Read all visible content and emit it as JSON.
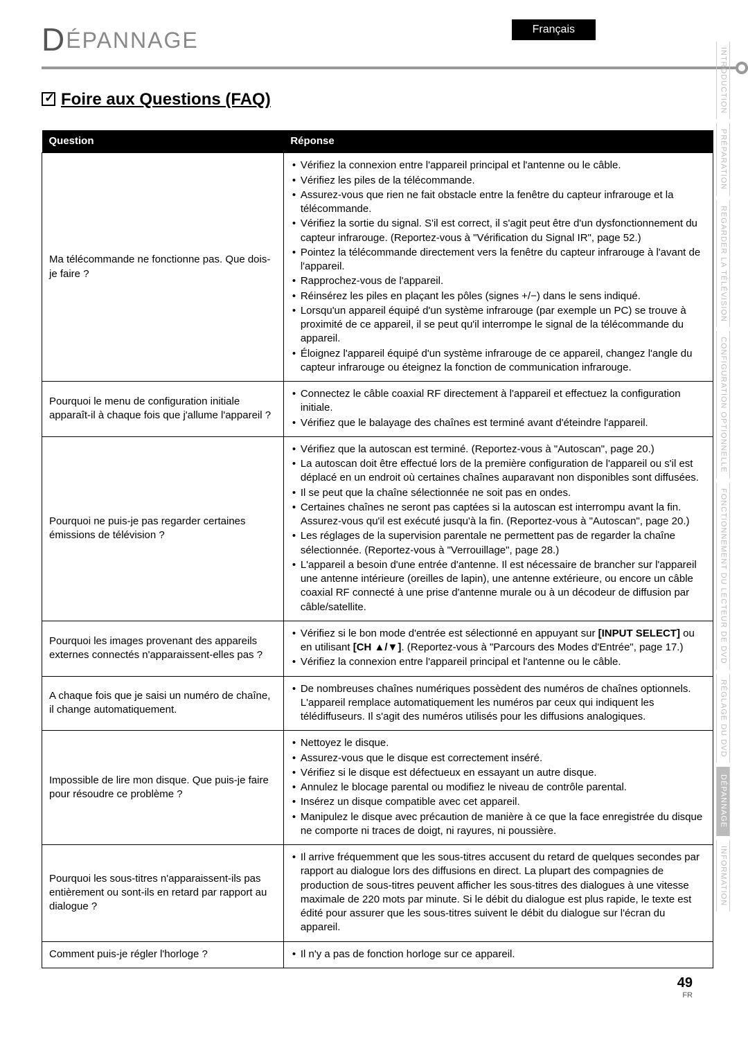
{
  "language_tab": "Français",
  "section_letter": "D",
  "section_title": "ÉPANNAGE",
  "faq_heading": "Foire aux Questions (FAQ)",
  "table": {
    "head_q": "Question",
    "head_a": "Réponse",
    "rows": [
      {
        "q": "Ma télécommande ne fonctionne pas. Que dois-je faire ?",
        "a": [
          "Vérifiez la connexion entre l'appareil principal et l'antenne ou le câble.",
          "Vérifiez les piles de la télécommande.",
          "Assurez-vous que rien ne fait obstacle entre la fenêtre du capteur infrarouge et la télécommande.",
          "Vérifiez la sortie du signal. S'il est correct, il s'agit peut être d'un dysfonctionnement du capteur infrarouge. (Reportez-vous à \"Vérification du Signal IR\", page 52.)",
          "Pointez la télécommande directement vers la fenêtre du capteur infrarouge à l'avant de l'appareil.",
          "Rapprochez-vous de l'appareil.",
          "Réinsérez les piles en plaçant les pôles (signes +/−) dans le sens indiqué.",
          "Lorsqu'un appareil équipé d'un système infrarouge (par exemple un PC) se trouve à proximité de ce appareil, il se peut qu'il interrompe le signal de la télécommande du appareil.",
          "Éloignez l'appareil équipé d'un système infrarouge de ce appareil, changez l'angle du capteur infrarouge ou éteignez la fonction de communication infrarouge."
        ]
      },
      {
        "q": "Pourquoi le menu de configuration initiale apparaît-il à chaque fois que j'allume l'appareil ?",
        "a": [
          "Connectez le câble coaxial RF directement à l'appareil et effectuez la configuration initiale.",
          "Vérifiez que le balayage des chaînes est terminé avant d'éteindre l'appareil."
        ]
      },
      {
        "q": "Pourquoi ne puis-je pas regarder certaines émissions de télévision ?",
        "a": [
          "Vérifiez que la autoscan est terminé. (Reportez-vous à \"Autoscan\", page 20.)",
          "La autoscan doit être effectué lors de la première configuration de l'appareil ou s'il est déplacé en un endroit où certaines chaînes auparavant non disponibles sont diffusées.",
          "Il se peut que la chaîne sélectionnée ne soit pas en ondes.",
          "Certaines chaînes ne seront pas captées si la autoscan est interrompu avant la fin. Assurez-vous qu'il est exécuté jusqu'à la fin. (Reportez-vous à \"Autoscan\", page 20.)",
          "Les réglages de la supervision parentale ne permettent pas de regarder la chaîne sélectionnée. (Reportez-vous à \"Verrouillage\", page 28.)",
          "L'appareil a besoin d'une entrée d'antenne. Il est nécessaire de brancher sur l'appareil une antenne intérieure (oreilles de lapin), une antenne extérieure, ou encore un câble coaxial RF connecté à une prise d'antenne murale ou à un décodeur de diffusion par câble/satellite."
        ]
      },
      {
        "q": "Pourquoi les images provenant des appareils externes connectés n'apparaissent-elles pas ?",
        "a_html": [
          "Vérifiez si le bon mode d'entrée est sélectionné en appuyant sur <span class=\"bold\">[INPUT SELECT]</span> ou en utilisant <span class=\"bold\">[CH ▲/▼]</span>. (Reportez-vous à \"Parcours des Modes d'Entrée\", page 17.)",
          "Vérifiez la connexion entre l'appareil principal et l'antenne ou le câble."
        ]
      },
      {
        "q": "A chaque fois que je saisi un numéro de chaîne, il change automatiquement.",
        "a": [
          "De nombreuses chaînes numériques possèdent des numéros de chaînes optionnels. L'appareil remplace automatiquement les numéros par ceux qui indiquent les télédiffuseurs. Il s'agit des numéros utilisés pour les diffusions analogiques."
        ]
      },
      {
        "q": "Impossible de lire mon disque. Que puis-je faire pour résoudre ce problème ?",
        "a": [
          "Nettoyez le disque.",
          "Assurez-vous que le disque est correctement inséré.",
          "Vérifiez si le disque est défectueux en essayant un autre disque.",
          "Annulez le blocage parental ou modifiez le niveau de contrôle parental.",
          "Insérez un disque compatible avec cet appareil.",
          "Manipulez le disque avec précaution de manière à ce que la face enregistrée du disque ne comporte ni traces de doigt, ni rayures, ni poussière."
        ]
      },
      {
        "q": "Pourquoi les sous-titres n'apparaissent-ils pas entièrement ou sont-ils en retard par rapport au dialogue ?",
        "a": [
          "Il arrive fréquemment que les sous-titres accusent du retard de quelques secondes par rapport au dialogue lors des diffusions en direct. La plupart des compagnies de production de sous-titres peuvent afficher les sous-titres des dialogues à une vitesse maximale de 220 mots par minute. Si le débit du dialogue est plus rapide, le texte est édité pour assurer que les sous-titres suivent le débit du dialogue sur l'écran du appareil."
        ]
      },
      {
        "q": "Comment puis-je régler l'horloge ?",
        "a": [
          "Il n'y a pas de fonction horloge sur ce appareil."
        ]
      }
    ]
  },
  "side_tabs": [
    {
      "label": "INTRODUCTION",
      "active": false
    },
    {
      "label": "PRÉPARATION",
      "active": false
    },
    {
      "label": "REGARDER LA TÉLÉVISION",
      "active": false
    },
    {
      "label": "CONFIGURATION OPTIONNELLE",
      "active": false
    },
    {
      "label": "FONCTIONNEMENT DU LECTEUR DE DVD",
      "active": false
    },
    {
      "label": "RÉGLAGE DU DVD",
      "active": false
    },
    {
      "label": "DÉPANNAGE",
      "active": true
    },
    {
      "label": "INFORMATION",
      "active": false
    }
  ],
  "page_number": "49",
  "page_lang": "FR",
  "colors": {
    "header_bg": "#000000",
    "header_fg": "#ffffff",
    "rule": "#999999",
    "tab_muted": "#bbbbbb",
    "tab_active_bg": "#bbbbbb",
    "section_title": "#888888"
  }
}
